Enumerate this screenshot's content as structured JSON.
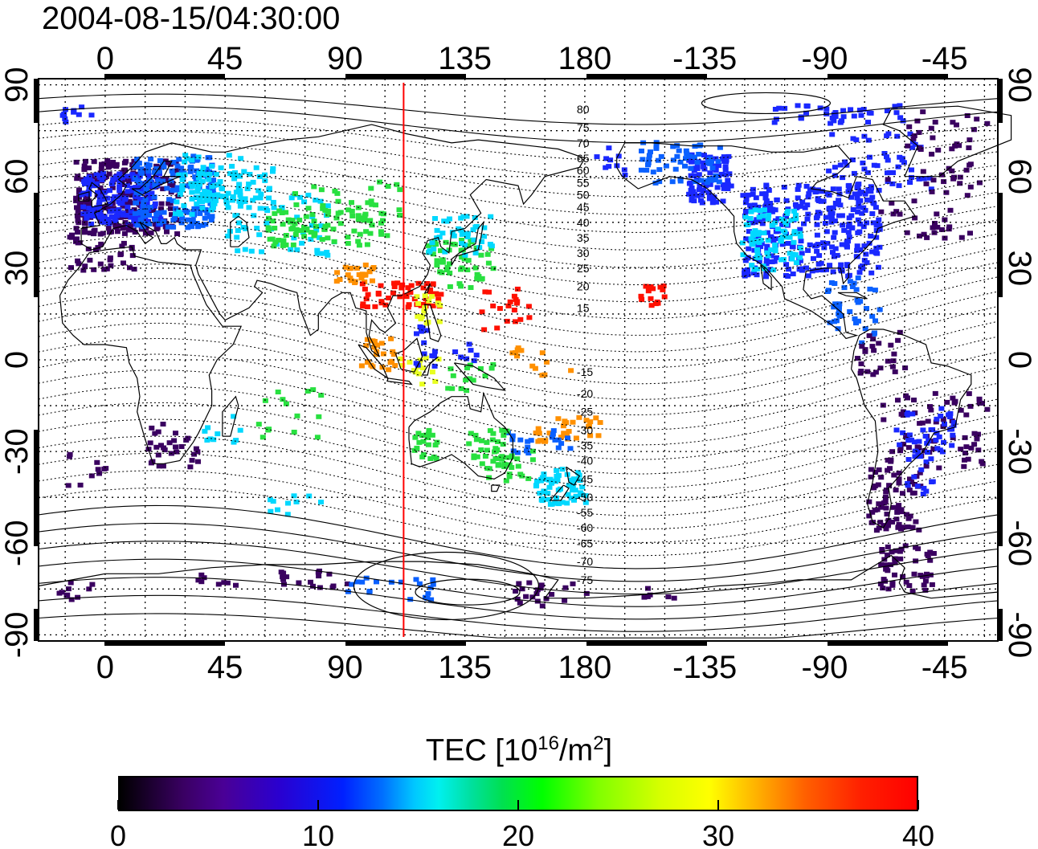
{
  "title": "2004-08-15/04:30:00",
  "map": {
    "top_lon_ticks": [
      "0",
      "45",
      "90",
      "135",
      "180",
      "-135",
      "-90",
      "-45"
    ],
    "bottom_lon_ticks": [
      "0",
      "45",
      "90",
      "135",
      "180",
      "-135",
      "-90",
      "-45"
    ],
    "left_lat_ticks": [
      "90",
      "60",
      "30",
      "0",
      "-30",
      "-60",
      "-90"
    ],
    "right_lat_ticks": [
      "90",
      "60",
      "30",
      "0",
      "-30",
      "-60",
      "-90"
    ],
    "lon_min": -25,
    "lon_max": 335,
    "lat_min": -92,
    "lat_max": 92,
    "terminator_lon": 112,
    "terminator_color": "#ff0000",
    "contour_labels": [
      "80",
      "75",
      "70",
      "65",
      "60",
      "55",
      "50",
      "45",
      "40",
      "35",
      "30",
      "25",
      "20",
      "15",
      "-15",
      "-20",
      "-25",
      "-30",
      "-35",
      "-40",
      "-45",
      "-50",
      "-55",
      "-60",
      "-65",
      "-70",
      "-75"
    ],
    "contour_label_lats": [
      82,
      76,
      71,
      66,
      62,
      58,
      54,
      50,
      45,
      40,
      35,
      30,
      24,
      17,
      -4,
      -11,
      -17,
      -23,
      -28,
      -33,
      -39,
      -45,
      -50,
      -55,
      -60,
      -66,
      -72
    ]
  },
  "colorbar": {
    "title_main": "TEC  [10",
    "title_exp1": "16",
    "title_mid": "/m",
    "title_exp2": "2",
    "title_end": "]",
    "min": 0,
    "max": 40,
    "ticks": [
      "0",
      "10",
      "20",
      "30",
      "40"
    ]
  },
  "colors": {
    "dark": "#3a0060",
    "blue": "#1a28ff",
    "midblue": "#0a60ff",
    "cyan": "#00d8ff",
    "green": "#28e040",
    "yellow": "#e8ff20",
    "orange": "#ff9000",
    "red": "#ff1000"
  }
}
